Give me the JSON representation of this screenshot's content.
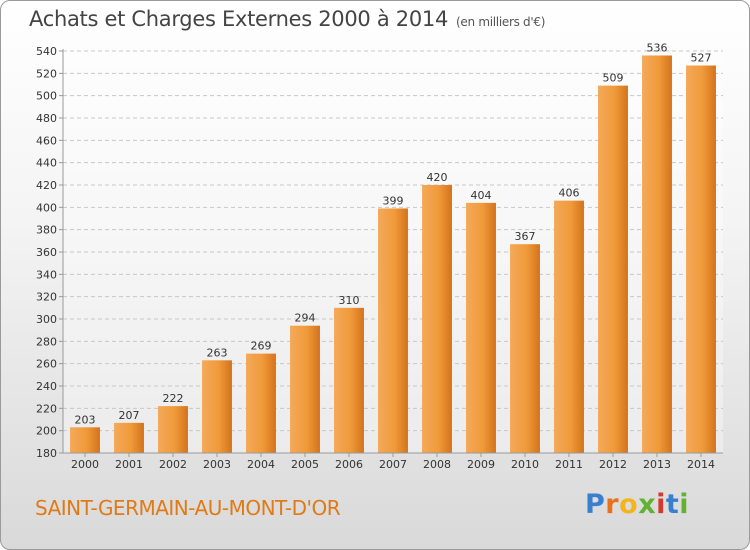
{
  "header": {
    "title": "Achats et Charges Externes 2000 à 2014",
    "subtitle": "(en milliers d'€)"
  },
  "footer": {
    "town": "SAINT-GERMAIN-AU-MONT-D'OR",
    "logo_letters": [
      "P",
      "r",
      "o",
      "x",
      "i",
      "t",
      "i"
    ],
    "logo_colors": [
      "#3a7fcf",
      "#e8711c",
      "#f2b51c",
      "#62b132",
      "#d23a2f",
      "#3a7fcf",
      "#62b132"
    ]
  },
  "colors": {
    "bar": "#f09a3a",
    "bar_light": "#f5a95a",
    "bar_dark": "#d4731c",
    "grid": "#c8c8c8",
    "axis_text": "#333333"
  },
  "chart_data": {
    "type": "bar",
    "categories": [
      "2000",
      "2001",
      "2002",
      "2003",
      "2004",
      "2005",
      "2006",
      "2007",
      "2008",
      "2009",
      "2010",
      "2011",
      "2012",
      "2013",
      "2014"
    ],
    "values": [
      203,
      207,
      222,
      263,
      269,
      294,
      310,
      399,
      420,
      404,
      367,
      406,
      509,
      536,
      527
    ],
    "title": "Achats et Charges Externes 2000 à 2014",
    "xlabel": "",
    "ylabel": "",
    "ylim": [
      180,
      540
    ],
    "yticks": [
      180,
      200,
      220,
      240,
      260,
      280,
      300,
      320,
      340,
      360,
      380,
      400,
      420,
      440,
      460,
      480,
      500,
      520,
      540
    ],
    "grid": true,
    "data_labels": true
  }
}
